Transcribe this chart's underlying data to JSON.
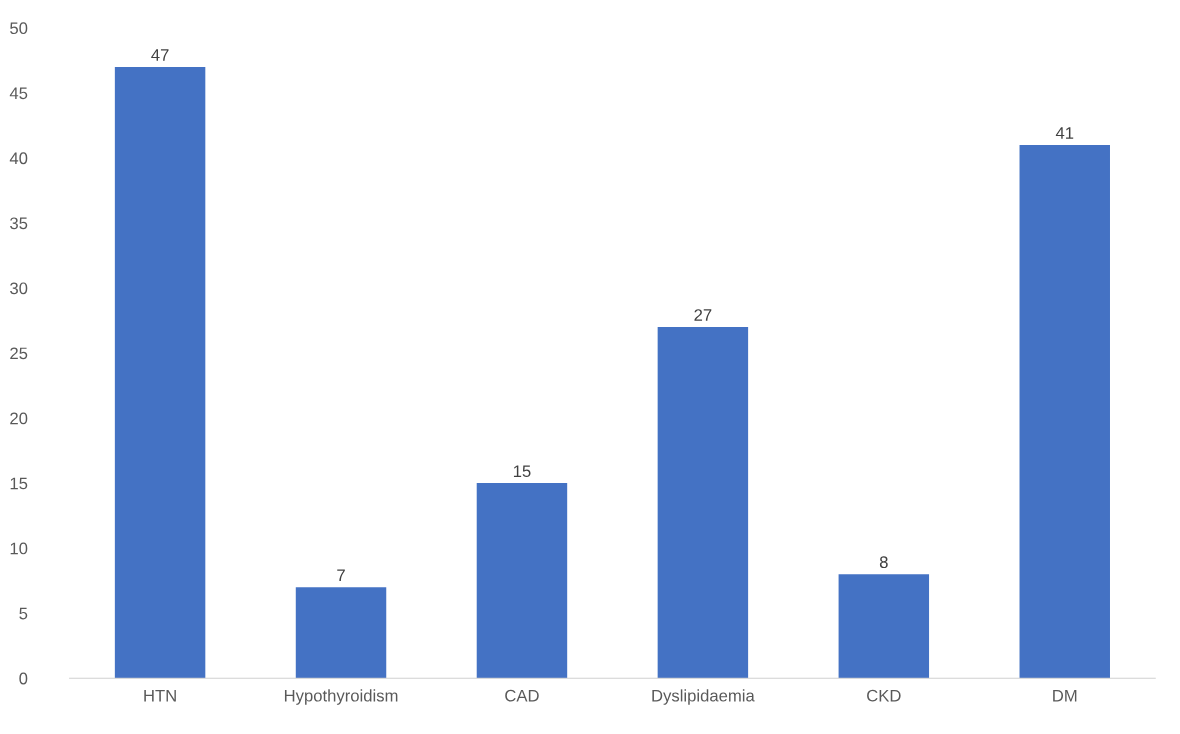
{
  "chart_data": {
    "type": "bar",
    "categories": [
      "HTN",
      "Hypothyroidism",
      "CAD",
      "Dyslipidaemia",
      "CKD",
      "DM"
    ],
    "values": [
      47,
      7,
      15,
      27,
      8,
      41
    ],
    "color": "#4472c4",
    "ylim": [
      0,
      50
    ],
    "yticks": [
      0,
      5,
      10,
      15,
      20,
      25,
      30,
      35,
      40,
      45,
      50
    ],
    "grid": false,
    "data_labels": true
  }
}
